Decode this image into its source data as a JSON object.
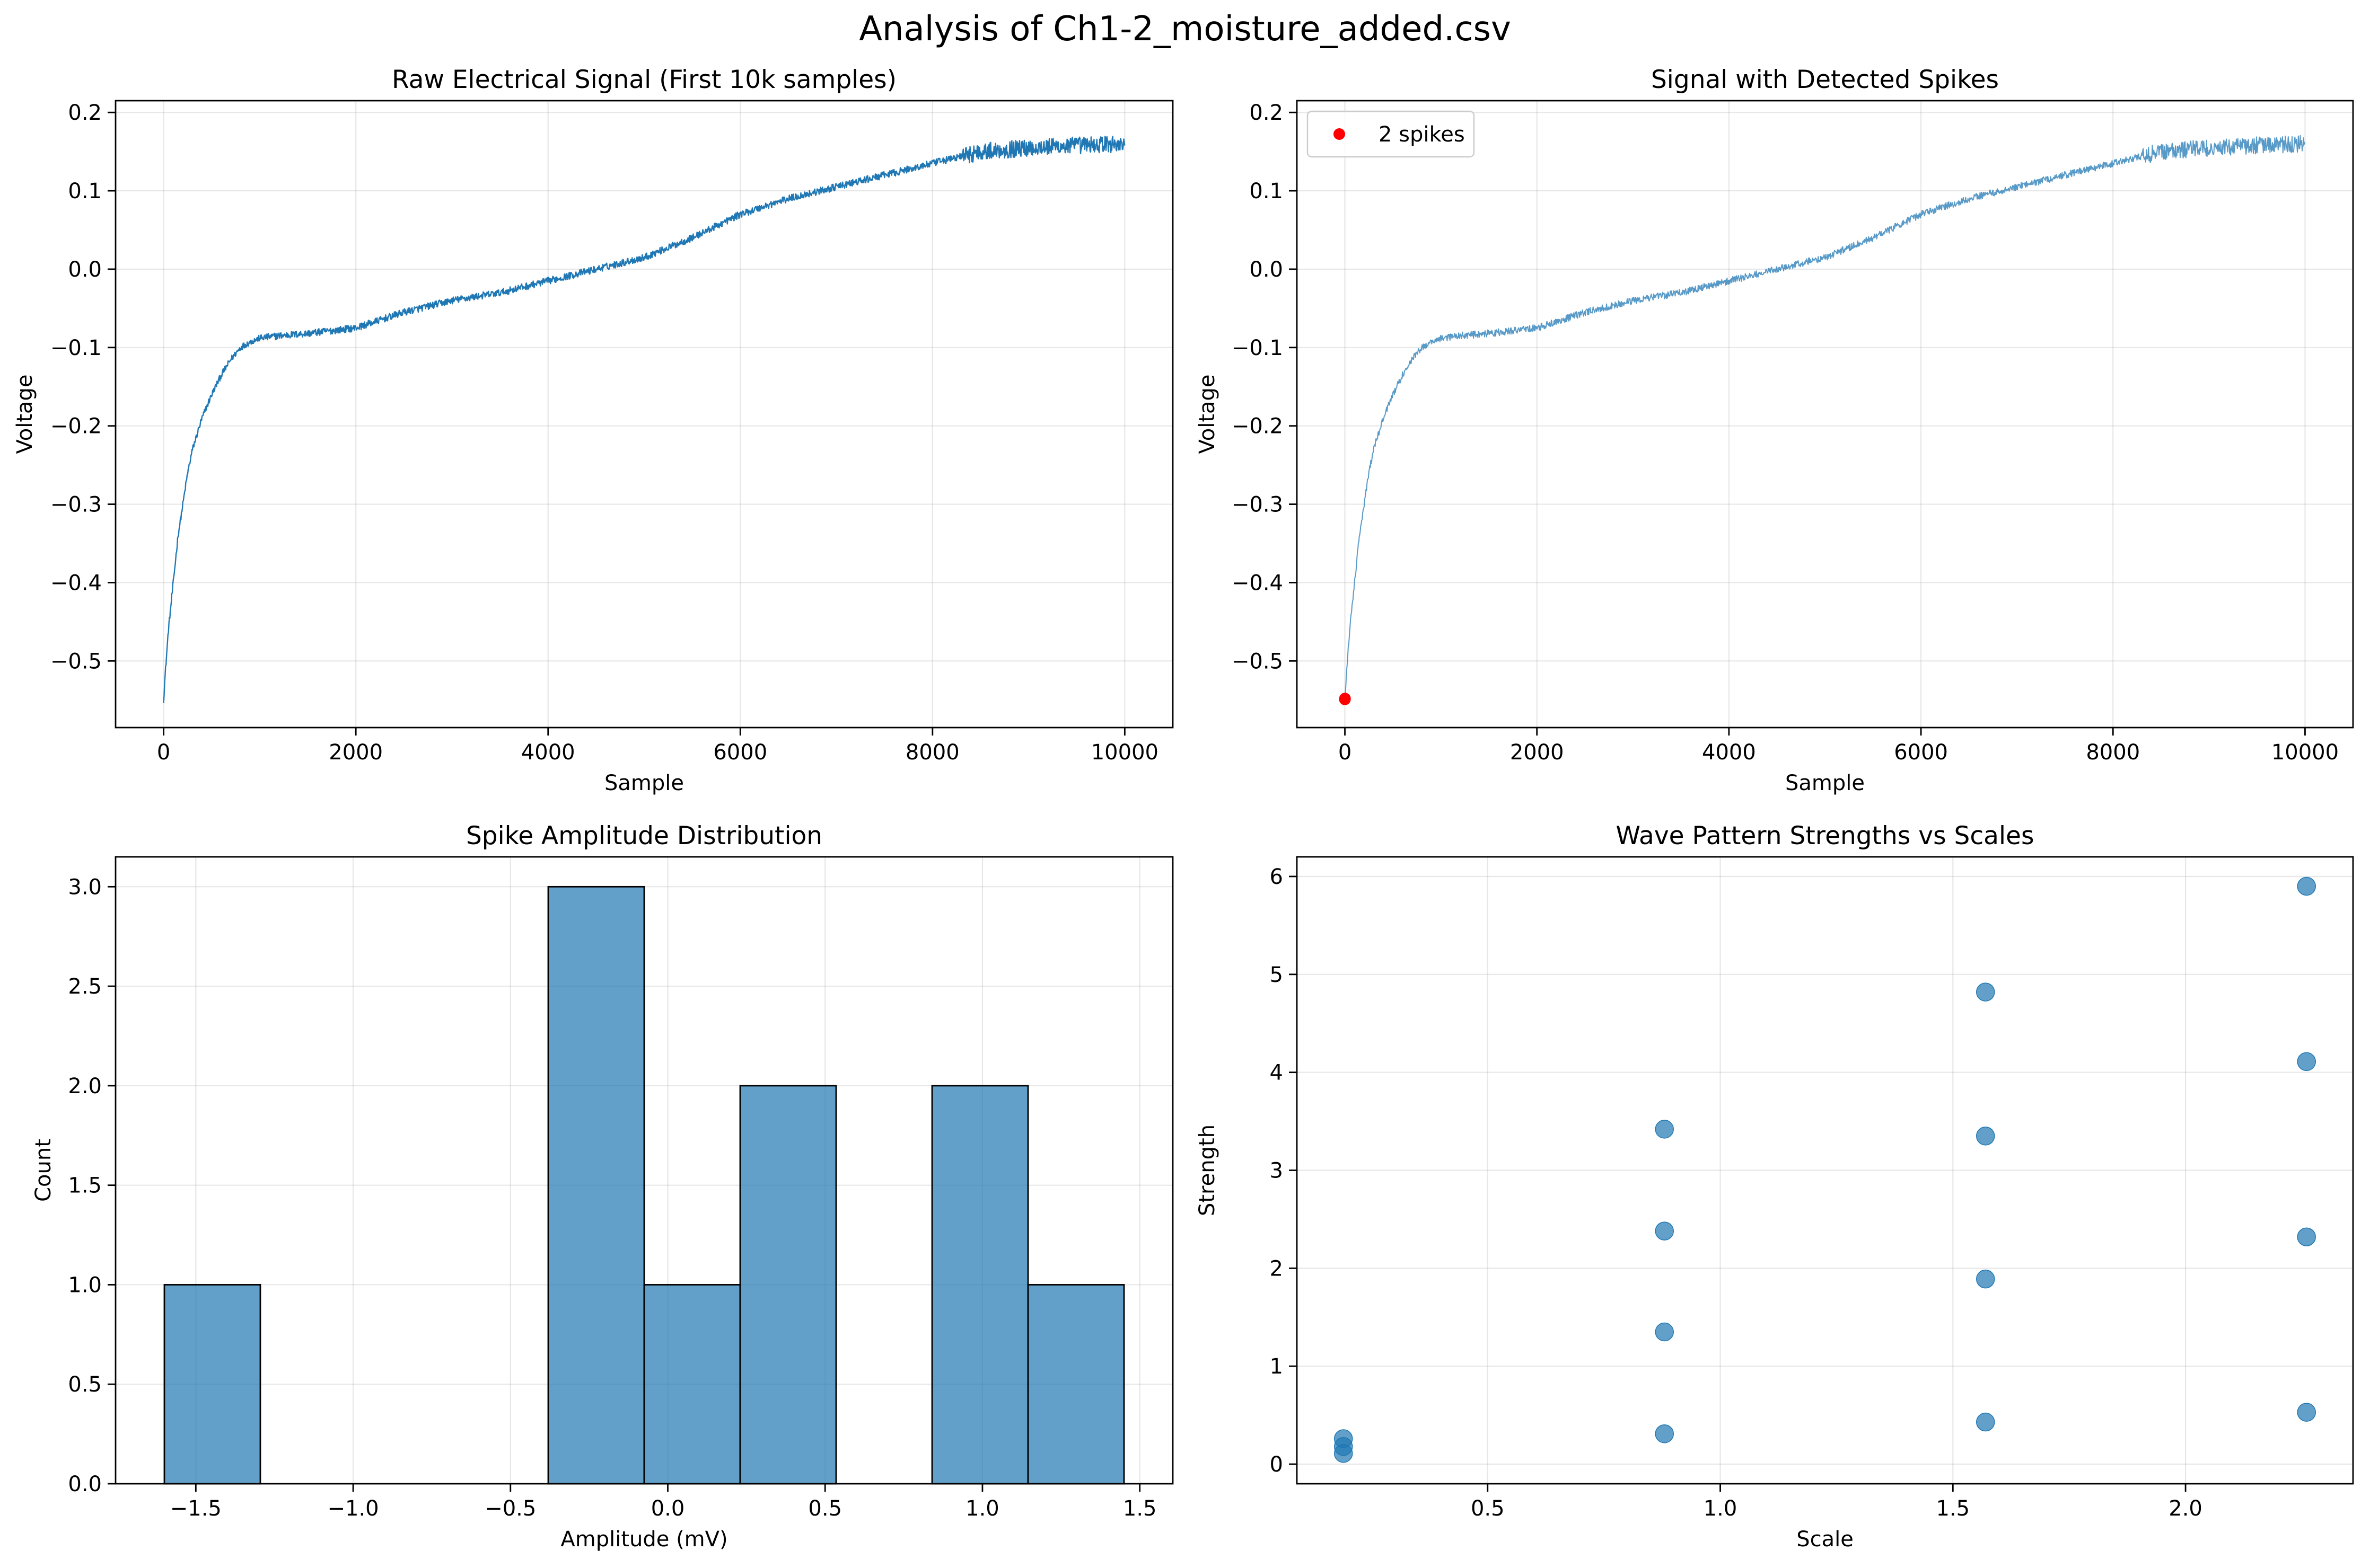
{
  "figure": {
    "title": "Analysis of Ch1-2_moisture_added.csv"
  },
  "colors": {
    "signal": "#1f77b4",
    "spike": "#ff0000",
    "grid": "#b0b0b0",
    "hist_fill": "#1f77b4",
    "hist_edge": "#000000"
  },
  "chart_data": [
    {
      "type": "line",
      "title": "Raw Electrical Signal (First 10k samples)",
      "xlabel": "Sample",
      "ylabel": "Voltage",
      "xlim": [
        -500,
        10500
      ],
      "ylim": [
        -0.585,
        0.215
      ],
      "xticks": [
        0,
        2000,
        4000,
        6000,
        8000,
        10000
      ],
      "xtick_labels": [
        "0",
        "2000",
        "4000",
        "6000",
        "8000",
        "10000"
      ],
      "yticks": [
        -0.5,
        -0.4,
        -0.3,
        -0.2,
        -0.1,
        0.0,
        0.1,
        0.2
      ],
      "ytick_labels": [
        "−0.5",
        "−0.4",
        "−0.3",
        "−0.2",
        "−0.1",
        "0.0",
        "0.1",
        "0.2"
      ],
      "grid": true,
      "series": [
        {
          "x": [
            0,
            20,
            50,
            100,
            150,
            200,
            250,
            300,
            400,
            500,
            600,
            700,
            800,
            900,
            1000,
            1200,
            1500,
            2000,
            2500,
            3000,
            3500,
            4000,
            4500,
            5000,
            5500,
            6000,
            6500,
            7000,
            7500,
            8000,
            8500,
            9000,
            9500,
            10000
          ],
          "y": [
            -0.55,
            -0.51,
            -0.46,
            -0.4,
            -0.34,
            -0.3,
            -0.26,
            -0.23,
            -0.19,
            -0.16,
            -0.135,
            -0.115,
            -0.1,
            -0.093,
            -0.088,
            -0.085,
            -0.082,
            -0.075,
            -0.055,
            -0.04,
            -0.03,
            -0.015,
            0.0,
            0.015,
            0.04,
            0.07,
            0.09,
            0.105,
            0.12,
            0.135,
            0.15,
            0.155,
            0.158,
            0.16
          ]
        }
      ]
    },
    {
      "type": "line",
      "title": "Signal with Detected Spikes",
      "xlabel": "Sample",
      "ylabel": "Voltage",
      "xlim": [
        -500,
        10500
      ],
      "ylim": [
        -0.585,
        0.215
      ],
      "xticks": [
        0,
        2000,
        4000,
        6000,
        8000,
        10000
      ],
      "xtick_labels": [
        "0",
        "2000",
        "4000",
        "6000",
        "8000",
        "10000"
      ],
      "yticks": [
        -0.5,
        -0.4,
        -0.3,
        -0.2,
        -0.1,
        0.0,
        0.1,
        0.2
      ],
      "ytick_labels": [
        "−0.5",
        "−0.4",
        "−0.3",
        "−0.2",
        "−0.1",
        "0.0",
        "0.1",
        "0.2"
      ],
      "grid": true,
      "legend": {
        "placement": "top-left",
        "entries": [
          "2 spikes"
        ]
      },
      "series": [
        {
          "x": [
            0,
            20,
            50,
            100,
            150,
            200,
            250,
            300,
            400,
            500,
            600,
            700,
            800,
            900,
            1000,
            1200,
            1500,
            2000,
            2500,
            3000,
            3500,
            4000,
            4500,
            5000,
            5500,
            6000,
            6500,
            7000,
            7500,
            8000,
            8500,
            9000,
            9500,
            10000
          ],
          "y": [
            -0.55,
            -0.51,
            -0.46,
            -0.4,
            -0.34,
            -0.3,
            -0.26,
            -0.23,
            -0.19,
            -0.16,
            -0.135,
            -0.115,
            -0.1,
            -0.093,
            -0.088,
            -0.085,
            -0.082,
            -0.075,
            -0.055,
            -0.04,
            -0.03,
            -0.015,
            0.0,
            0.015,
            0.04,
            0.07,
            0.09,
            0.105,
            0.12,
            0.135,
            0.15,
            0.155,
            0.158,
            0.16
          ]
        }
      ],
      "spikes": {
        "name": "2 spikes",
        "x": [
          0,
          1
        ],
        "y": [
          -0.549,
          -0.548
        ]
      }
    },
    {
      "type": "bar",
      "title": "Spike Amplitude Distribution",
      "xlabel": "Amplitude (mV)",
      "ylabel": "Count",
      "xlim": [
        -1.755,
        1.605
      ],
      "ylim": [
        0,
        3.15
      ],
      "xticks": [
        -1.5,
        -1.0,
        -0.5,
        0.0,
        0.5,
        1.0,
        1.5
      ],
      "xtick_labels": [
        "−1.5",
        "−1.0",
        "−0.5",
        "0.0",
        "0.5",
        "1.0",
        "1.5"
      ],
      "yticks": [
        0.0,
        0.5,
        1.0,
        1.5,
        2.0,
        2.5,
        3.0
      ],
      "ytick_labels": [
        "0.0",
        "0.5",
        "1.0",
        "1.5",
        "2.0",
        "2.5",
        "3.0"
      ],
      "grid": true,
      "bin_edges": [
        -1.6,
        -1.295,
        -0.99,
        -0.685,
        -0.38,
        -0.075,
        0.23,
        0.535,
        0.84,
        1.145,
        1.45
      ],
      "counts": [
        1,
        0,
        0,
        0,
        3,
        1,
        2,
        0,
        2,
        1
      ]
    },
    {
      "type": "scatter",
      "title": "Wave Pattern Strengths vs Scales",
      "xlabel": "Scale",
      "ylabel": "Strength",
      "xlim": [
        0.09,
        2.36
      ],
      "ylim": [
        -0.2,
        6.2
      ],
      "xticks": [
        0.5,
        1.0,
        1.5,
        2.0
      ],
      "xtick_labels": [
        "0.5",
        "1.0",
        "1.5",
        "2.0"
      ],
      "yticks": [
        0,
        1,
        2,
        3,
        4,
        5,
        6
      ],
      "ytick_labels": [
        "0",
        "1",
        "2",
        "3",
        "4",
        "5",
        "6"
      ],
      "grid": true,
      "series": [
        {
          "x": [
            0.19,
            0.19,
            0.19,
            0.88,
            0.88,
            0.88,
            0.88,
            1.57,
            1.57,
            1.57,
            1.57,
            2.26,
            2.26,
            2.26,
            2.26
          ],
          "y": [
            0.11,
            0.18,
            0.26,
            0.31,
            1.35,
            2.38,
            3.42,
            0.43,
            1.89,
            3.35,
            4.82,
            0.53,
            2.32,
            4.11,
            5.9
          ]
        }
      ]
    }
  ]
}
